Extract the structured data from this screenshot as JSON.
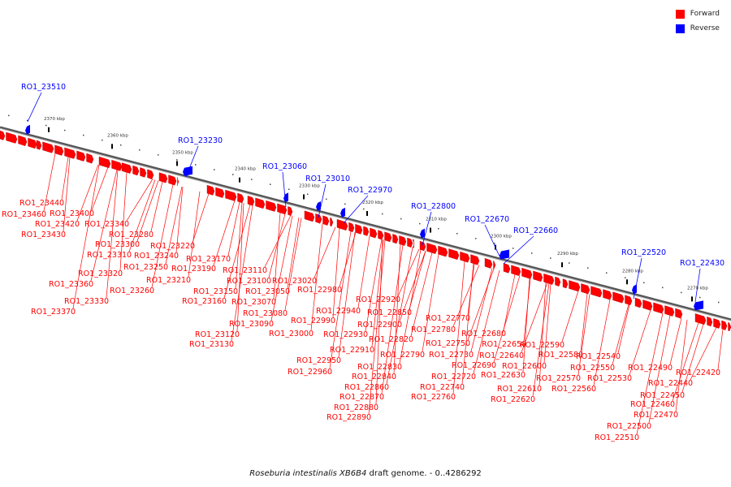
{
  "caption": {
    "organism": "Roseburia intestinalis XB6B4",
    "rest": " draft genome. - 0..4286292"
  },
  "legend": [
    {
      "label": "Forward",
      "color": "#ff0000"
    },
    {
      "label": "Reverse",
      "color": "#0000ff"
    }
  ],
  "colors": {
    "forward": "#ff0000",
    "reverse": "#0000ff",
    "backbone": "#888888"
  },
  "scale_ticks": [
    "2370 kbp",
    "2360 kbp",
    "2350 kbp",
    "2340 kbp",
    "2330 kbp",
    "2320 kbp",
    "2310 kbp",
    "2300 kbp",
    "2290 kbp",
    "2280 kbp",
    "2270 kbp"
  ],
  "reverse_labels": [
    "RO1_23510",
    "RO1_23230",
    "RO1_23060",
    "RO1_23010",
    "RO1_22970",
    "RO1_22800",
    "RO1_22670",
    "RO1_22660",
    "RO1_22520",
    "RO1_22430"
  ],
  "forward_labels": [
    "RO1_23440",
    "RO1_23460",
    "RO1_23400",
    "RO1_23420",
    "RO1_23340",
    "RO1_23430",
    "RO1_23280",
    "RO1_23220",
    "RO1_23300",
    "RO1_23310",
    "RO1_23240",
    "RO1_23170",
    "RO1_23250",
    "RO1_23190",
    "RO1_23110",
    "RO1_23320",
    "RO1_23210",
    "RO1_23100",
    "RO1_23020",
    "RO1_23360",
    "RO1_23150",
    "RO1_23050",
    "RO1_22980",
    "RO1_23260",
    "RO1_23160",
    "RO1_23070",
    "RO1_23330",
    "RO1_23080",
    "RO1_22920",
    "RO1_23370",
    "RO1_22990",
    "RO1_22940",
    "RO1_22850",
    "RO1_23090",
    "RO1_22900",
    "RO1_22770",
    "RO1_23000",
    "RO1_22930",
    "RO1_22820",
    "RO1_22780",
    "RO1_23120",
    "RO1_22680",
    "RO1_22590",
    "RO1_23130",
    "RO1_22750",
    "RO1_22650",
    "RO1_22910",
    "RO1_22790",
    "RO1_22730",
    "RO1_22640",
    "RO1_22580",
    "RO1_22540",
    "RO1_22950",
    "RO1_22830",
    "RO1_22690",
    "RO1_22600",
    "RO1_22490",
    "RO1_22420",
    "RO1_22960",
    "RO1_22720",
    "RO1_22630",
    "RO1_22570",
    "RO1_22550",
    "RO1_22530",
    "RO1_22440",
    "RO1_22840",
    "RO1_22740",
    "RO1_22560",
    "RO1_22450",
    "RO1_22860",
    "RO1_22610",
    "RO1_22760",
    "RO1_22620",
    "RO1_22870",
    "RO1_22460",
    "RO1_22880",
    "RO1_22470",
    "RO1_22890",
    "RO1_22500",
    "RO1_22510"
  ]
}
